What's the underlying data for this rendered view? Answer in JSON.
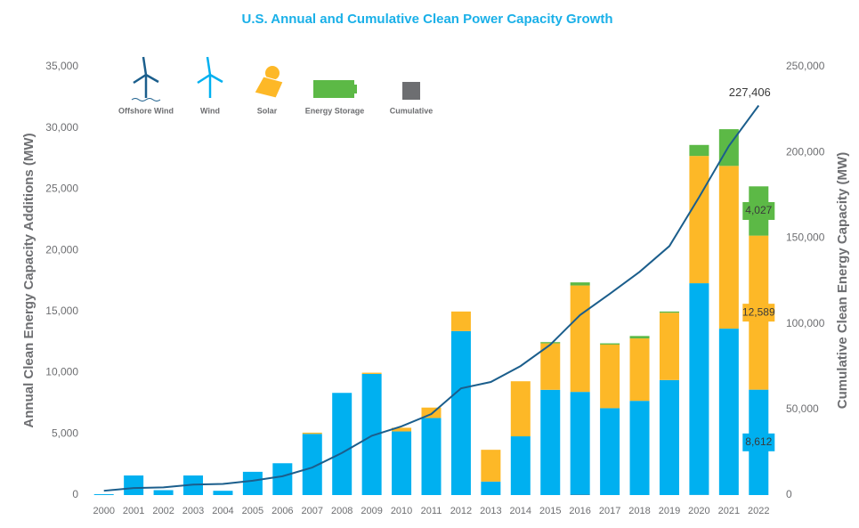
{
  "chart_data": {
    "type": "bar",
    "title": "U.S. Annual and Cumulative Clean Power Capacity Growth",
    "y_label": "Annual Clean Energy Capacity Additions (MW)",
    "y2_label": "Cumulative Clean Energy Capacity  (MW)",
    "categories": [
      "2000",
      "2001",
      "2002",
      "2003",
      "2004",
      "2005",
      "2006",
      "2007",
      "2008",
      "2009",
      "2010",
      "2011",
      "2012",
      "2013",
      "2014",
      "2015",
      "2016",
      "2017",
      "2018",
      "2019",
      "2020",
      "2021",
      "2022"
    ],
    "series": [
      {
        "name": "Offshore Wind",
        "color": "#1b5e8c",
        "values": [
          0,
          0,
          0,
          0,
          0,
          0,
          0,
          0,
          0,
          0,
          0,
          0,
          0,
          0,
          0,
          0,
          30,
          0,
          0,
          0,
          12,
          0,
          0
        ]
      },
      {
        "name": "Wind",
        "color": "#00b0f0",
        "values": [
          70,
          1600,
          400,
          1600,
          350,
          1900,
          2600,
          5000,
          8350,
          9900,
          5200,
          6300,
          13400,
          1100,
          4800,
          8600,
          8400,
          7100,
          7700,
          9400,
          17300,
          13600,
          8612
        ],
        "value_labels": [
          null,
          null,
          null,
          null,
          null,
          null,
          null,
          null,
          null,
          null,
          null,
          null,
          null,
          null,
          null,
          null,
          null,
          null,
          null,
          null,
          null,
          null,
          "8,612"
        ]
      },
      {
        "name": "Solar",
        "color": "#fdb827",
        "values": [
          0,
          0,
          0,
          0,
          0,
          0,
          0,
          100,
          0,
          100,
          300,
          850,
          1600,
          2600,
          4500,
          3800,
          8700,
          5200,
          5100,
          5500,
          10400,
          13300,
          12589
        ],
        "value_labels": [
          null,
          null,
          null,
          null,
          null,
          null,
          null,
          null,
          null,
          null,
          null,
          null,
          null,
          null,
          null,
          null,
          null,
          null,
          null,
          null,
          null,
          null,
          "12,589"
        ]
      },
      {
        "name": "Energy Storage",
        "color": "#5cb946",
        "values": [
          0,
          0,
          0,
          0,
          0,
          0,
          0,
          0,
          0,
          0,
          0,
          0,
          0,
          0,
          0,
          100,
          250,
          100,
          200,
          100,
          900,
          3000,
          4027
        ],
        "value_labels": [
          null,
          null,
          null,
          null,
          null,
          null,
          null,
          null,
          null,
          null,
          null,
          null,
          null,
          null,
          null,
          null,
          null,
          null,
          null,
          null,
          null,
          null,
          "4,027"
        ]
      },
      {
        "name": "Cumulative",
        "color": "#1b5e8c",
        "axis": "y2",
        "values": [
          2500,
          4100,
          4500,
          6100,
          6500,
          8400,
          11000,
          16100,
          24600,
          34600,
          40100,
          47300,
          62300,
          66000,
          75300,
          87800,
          105100,
          117500,
          130300,
          145300,
          173900,
          203800,
          227406
        ],
        "value_labels": [
          null,
          null,
          null,
          null,
          null,
          null,
          null,
          null,
          null,
          null,
          null,
          null,
          null,
          null,
          null,
          null,
          null,
          null,
          null,
          null,
          null,
          null,
          "227,406"
        ]
      }
    ],
    "ylim": [
      0,
      35000
    ],
    "yticks": [
      0,
      {
        "value": 5000,
        "label": "5,000"
      },
      {
        "value": 10000,
        "label": "10,000"
      },
      {
        "value": 15000,
        "label": "15,000"
      },
      {
        "value": 20000,
        "label": "20,000"
      },
      {
        "value": 25000,
        "label": "25,000"
      },
      {
        "value": 30000,
        "label": "30,000"
      },
      {
        "value": 35000,
        "label": "35,000"
      }
    ],
    "y2lim": [
      0,
      250000
    ],
    "y2ticks": [
      0,
      {
        "value": 50000,
        "label": "50,000"
      },
      {
        "value": 100000,
        "label": "100,000"
      },
      {
        "value": 150000,
        "label": "150,000"
      },
      {
        "value": 200000,
        "label": "200,000"
      },
      {
        "value": 250000,
        "label": "250,000"
      }
    ],
    "grid": false,
    "legend": "top-left"
  }
}
